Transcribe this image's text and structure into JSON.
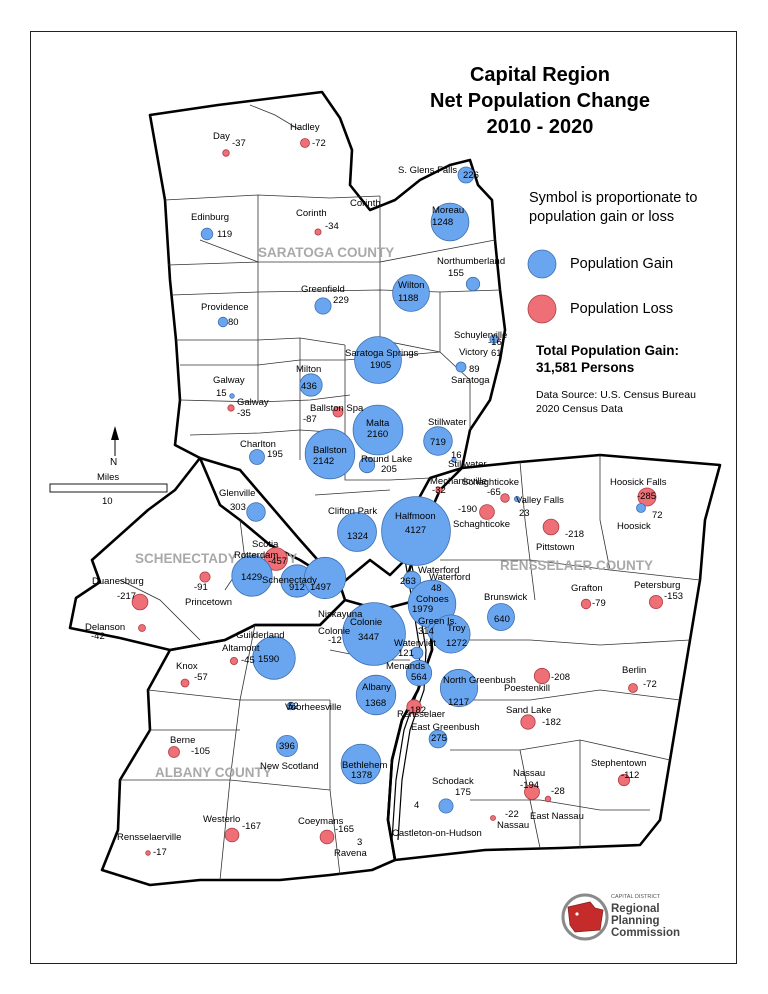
{
  "title": {
    "line1": "Capital Region",
    "line2": "Net Population Change",
    "line3": "2010 - 2020"
  },
  "legend": {
    "note_line1": "Symbol is proportionate to",
    "note_line2": "population gain or loss",
    "gain_label": "Population Gain",
    "loss_label": "Population Loss",
    "total_line1": "Total Population Gain:",
    "total_line2": "31,581 Persons",
    "source_line1": "Data Source: U.S. Census Bureau",
    "source_line2": "2020 Census Data"
  },
  "colors": {
    "gain": "#6aa6ef",
    "loss": "#ef6f76",
    "county_label": "#a9a9a9"
  },
  "north_label": "N",
  "scale": {
    "label": "Miles",
    "value": "10"
  },
  "counties": [
    {
      "name": "SARATOGA COUNTY"
    },
    {
      "name": "SCHENECTADY COUNTY"
    },
    {
      "name": "RENSSELAER COUNTY"
    },
    {
      "name": "ALBANY COUNTY"
    }
  ],
  "logo": {
    "tagline": "CAPITAL DISTRICT",
    "line1": "Regional",
    "line2": "Planning",
    "line3": "Commission"
  },
  "municipalities": [
    {
      "name": "Day",
      "value": "-37",
      "change": -37
    },
    {
      "name": "Hadley",
      "value": "-72",
      "change": -72
    },
    {
      "name": "S. Glens Falls",
      "value": "226",
      "change": 226
    },
    {
      "name": "Edinburg",
      "value": "119",
      "change": 119
    },
    {
      "name": "Corinth",
      "value": "-34",
      "change": -34
    },
    {
      "name": "Corinth",
      "value": "",
      "change": 0
    },
    {
      "name": "Moreau",
      "value": "1248",
      "change": 1248
    },
    {
      "name": "Northumberland",
      "value": "155",
      "change": 155
    },
    {
      "name": "Providence",
      "value": "80",
      "change": 80
    },
    {
      "name": "Greenfield",
      "value": "229",
      "change": 229
    },
    {
      "name": "Wilton",
      "value": "1188",
      "change": 1188
    },
    {
      "name": "Schuylerville",
      "value": "-16",
      "change": -16
    },
    {
      "name": "Victory",
      "value": "61",
      "change": 61
    },
    {
      "name": "Saratoga",
      "value": "89",
      "change": 89
    },
    {
      "name": "Saratoga Springs",
      "value": "1905",
      "change": 1905
    },
    {
      "name": "Galway",
      "value": "15",
      "change": 15
    },
    {
      "name": "Galway",
      "value": "-35",
      "change": -35
    },
    {
      "name": "Milton",
      "value": "436",
      "change": 436
    },
    {
      "name": "Ballston Spa",
      "value": "-87",
      "change": -87
    },
    {
      "name": "Malta",
      "value": "2160",
      "change": 2160
    },
    {
      "name": "Stillwater",
      "value": "719",
      "change": 719
    },
    {
      "name": "Stillwater",
      "value": "16",
      "change": 16
    },
    {
      "name": "Charlton",
      "value": "195",
      "change": 195
    },
    {
      "name": "Ballston",
      "value": "2142",
      "change": 2142
    },
    {
      "name": "Round Lake",
      "value": "205",
      "change": 205
    },
    {
      "name": "Mechanicville",
      "value": "-32",
      "change": -32
    },
    {
      "name": "Glenville",
      "value": "303",
      "change": 303
    },
    {
      "name": "Clifton Park",
      "value": "1324",
      "change": 1324
    },
    {
      "name": "Halfmoon",
      "value": "4127",
      "change": 4127
    },
    {
      "name": "Schaghticoke",
      "value": "-65",
      "change": -65
    },
    {
      "name": "Schaghticoke",
      "value": "-190",
      "change": -190
    },
    {
      "name": "Valley Falls",
      "value": "23",
      "change": 23
    },
    {
      "name": "Hoosick Falls",
      "value": "-285",
      "change": -285
    },
    {
      "name": "Hoosick",
      "value": "72",
      "change": 72
    },
    {
      "name": "Pittstown",
      "value": "-218",
      "change": -218
    },
    {
      "name": "Scotia",
      "value": "-457",
      "change": -457
    },
    {
      "name": "Rotterdam",
      "value": "1429",
      "change": 1429
    },
    {
      "name": "Schenectady",
      "value": "912",
      "change": 912
    },
    {
      "name": "Niskayuna",
      "value": "1497",
      "change": 1497
    },
    {
      "name": "Princetown",
      "value": "-91",
      "change": -91
    },
    {
      "name": "Duanesburg",
      "value": "-217",
      "change": -217
    },
    {
      "name": "Delanson",
      "value": "-42",
      "change": -42
    },
    {
      "name": "Waterford",
      "value": "263",
      "change": 263
    },
    {
      "name": "Waterford",
      "value": "48",
      "change": 48
    },
    {
      "name": "Cohoes",
      "value": "1979",
      "change": 1979
    },
    {
      "name": "Green Is.",
      "value": "314",
      "change": 314
    },
    {
      "name": "Troy",
      "value": "1272",
      "change": 1272
    },
    {
      "name": "Brunswick",
      "value": "640",
      "change": 640
    },
    {
      "name": "Grafton",
      "value": "-79",
      "change": -79
    },
    {
      "name": "Petersburg",
      "value": "-153",
      "change": -153
    },
    {
      "name": "Guilderland",
      "value": "1590",
      "change": 1590
    },
    {
      "name": "Altamont",
      "value": "-45",
      "change": -45
    },
    {
      "name": "Colonie",
      "value": "-12",
      "change": -12
    },
    {
      "name": "Colonie",
      "value": "3447",
      "change": 3447
    },
    {
      "name": "Watervliet",
      "value": "121",
      "change": 121
    },
    {
      "name": "Menands",
      "value": "564",
      "change": 564
    },
    {
      "name": "Knox",
      "value": "-57",
      "change": -57
    },
    {
      "name": "Albany",
      "value": "1368",
      "change": 1368
    },
    {
      "name": "North Greenbush",
      "value": "1217",
      "change": 1217
    },
    {
      "name": "Poestenkill",
      "value": "-208",
      "change": -208
    },
    {
      "name": "Berlin",
      "value": "-72",
      "change": -72
    },
    {
      "name": "Voorheesville",
      "value": "52",
      "change": 52
    },
    {
      "name": "Rensselaer",
      "value": "-182",
      "change": -182
    },
    {
      "name": "East Greenbush",
      "value": "275",
      "change": 275
    },
    {
      "name": "Sand Lake",
      "value": "-182",
      "change": -182
    },
    {
      "name": "Berne",
      "value": "-105",
      "change": -105
    },
    {
      "name": "New Scotland",
      "value": "396",
      "change": 396
    },
    {
      "name": "Bethlehem",
      "value": "1378",
      "change": 1378
    },
    {
      "name": "Stephentown",
      "value": "-112",
      "change": -112
    },
    {
      "name": "Schodack",
      "value": "175",
      "change": 175
    },
    {
      "name": "Nassau",
      "value": "-194",
      "change": -194
    },
    {
      "name": "Nassau",
      "value": "-22",
      "change": -22
    },
    {
      "name": "East Nassau",
      "value": "-28",
      "change": -28
    },
    {
      "name": "Westerlo",
      "value": "-167",
      "change": -167
    },
    {
      "name": "Coeymans",
      "value": "-165",
      "change": -165
    },
    {
      "name": "Castleton-on-Hudson",
      "value": "4",
      "change": 4
    },
    {
      "name": "Ravena",
      "value": "3",
      "change": 3
    },
    {
      "name": "Rensselaerville",
      "value": "-17",
      "change": -17
    }
  ]
}
